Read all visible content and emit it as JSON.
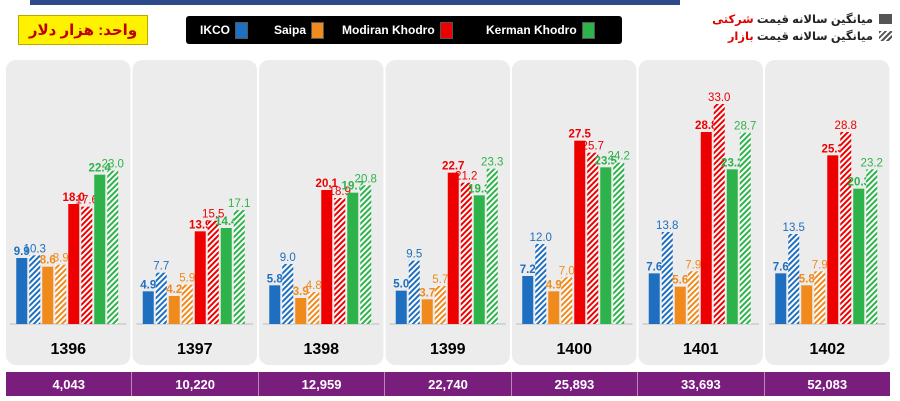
{
  "unit_label": "واحد: هزار دلار",
  "legend": {
    "company_price_pre": "میانگین سالانه قیمت ",
    "company_price_accent": "شرکتی",
    "market_price_pre": "میانگین سالانه قیمت ",
    "market_price_accent": "بازار"
  },
  "colors": {
    "IKCO": "#1f6fc0",
    "Saipa": "#f08a1c",
    "Modiran Khodro": "#ee0000",
    "Kerman Khodro": "#2db34a"
  },
  "chart_data": {
    "type": "bar",
    "categories": [
      "1396",
      "1397",
      "1398",
      "1399",
      "1400",
      "1401",
      "1402"
    ],
    "series": [
      {
        "name": "IKCO",
        "pricing": "company",
        "values": [
          9.9,
          4.9,
          5.8,
          5.0,
          7.2,
          7.6,
          7.6
        ]
      },
      {
        "name": "IKCO",
        "pricing": "market",
        "values": [
          10.3,
          7.7,
          9.0,
          9.5,
          12.0,
          13.8,
          13.5
        ]
      },
      {
        "name": "Saipa",
        "pricing": "company",
        "values": [
          8.6,
          4.2,
          3.9,
          3.7,
          4.9,
          5.6,
          5.8
        ]
      },
      {
        "name": "Saipa",
        "pricing": "market",
        "values": [
          8.9,
          5.9,
          4.8,
          5.7,
          7.0,
          7.9,
          7.9
        ]
      },
      {
        "name": "Modiran Khodro",
        "pricing": "company",
        "values": [
          18.0,
          13.9,
          20.1,
          22.7,
          27.5,
          28.8,
          25.3
        ]
      },
      {
        "name": "Modiran Khodro",
        "pricing": "market",
        "values": [
          17.6,
          15.5,
          18.9,
          21.2,
          25.7,
          33.0,
          28.8
        ]
      },
      {
        "name": "Kerman Khodro",
        "pricing": "company",
        "values": [
          22.4,
          14.4,
          19.7,
          19.3,
          23.5,
          23.2,
          20.3
        ]
      },
      {
        "name": "Kerman Khodro",
        "pricing": "market",
        "values": [
          23.0,
          17.1,
          20.8,
          23.3,
          24.2,
          28.7,
          23.2
        ]
      }
    ],
    "year_totals": [
      "4,043",
      "10,220",
      "12,959",
      "22,740",
      "25,893",
      "33,693",
      "52,083"
    ],
    "ylim": [
      0,
      36
    ],
    "legend_position": "top"
  }
}
